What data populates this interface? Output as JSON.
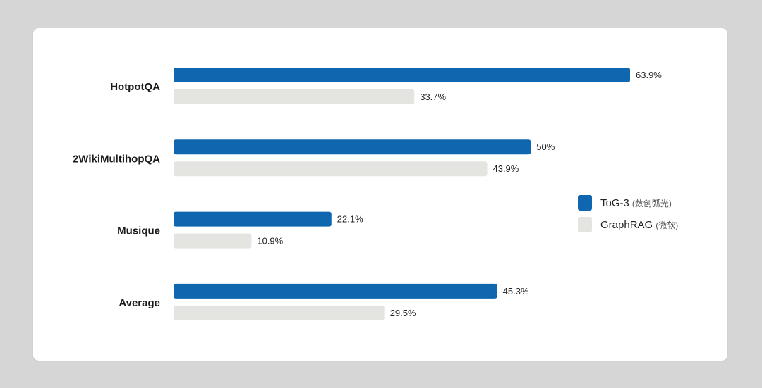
{
  "chart_data": {
    "type": "bar",
    "orientation": "horizontal",
    "categories": [
      "HotpotQA",
      "2WikiMultihopQA",
      "Musique",
      "Average"
    ],
    "series": [
      {
        "name": "ToG-3",
        "name_sub": "(数创弧光)",
        "color": "#0f67b0",
        "values": [
          63.9,
          50,
          22.1,
          45.3
        ],
        "labels": [
          "63.9%",
          "50%",
          "22.1%",
          "45.3%"
        ]
      },
      {
        "name": "GraphRAG",
        "name_sub": "(微软)",
        "color": "#e4e4e0",
        "values": [
          33.7,
          43.9,
          10.9,
          29.5
        ],
        "labels": [
          "33.7%",
          "43.9%",
          "10.9%",
          "29.5%"
        ]
      }
    ],
    "xlim": [
      0,
      100
    ],
    "grid": false,
    "legend_position": "right"
  }
}
